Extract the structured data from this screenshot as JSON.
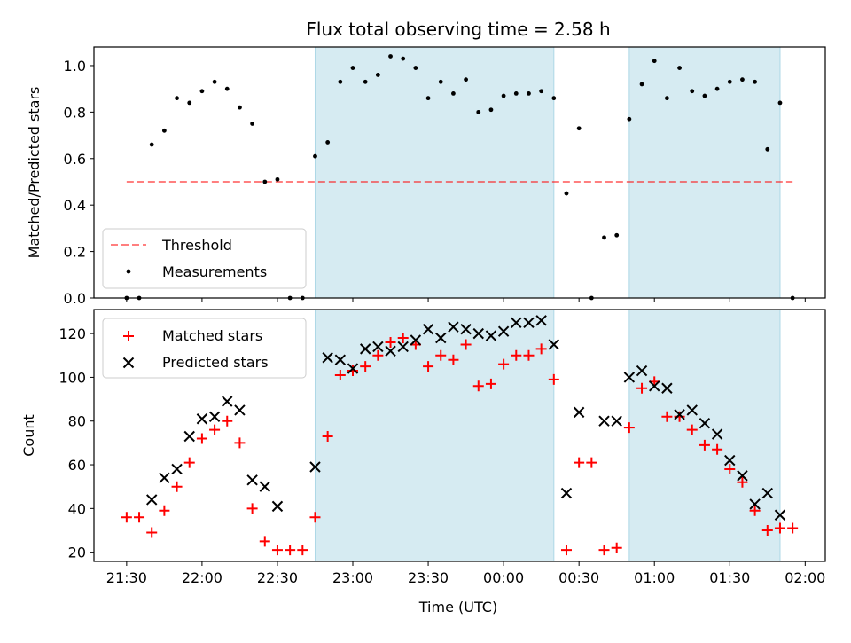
{
  "chart_data": {
    "type": "scatter",
    "title": "Flux total observing time = 2.58 h",
    "xlabel": "Time (UTC)",
    "x_ticks": [
      "21:30",
      "22:00",
      "22:30",
      "23:00",
      "23:30",
      "00:00",
      "00:30",
      "01:00",
      "01:30",
      "02:00"
    ],
    "x_range_minutes_after_2130": [
      -13,
      278
    ],
    "colors": {
      "shade": "#add8e6",
      "threshold": "#ff0000",
      "matched": "#ff0000",
      "predicted": "#000000",
      "measurement": "#000000"
    },
    "observing_windows": [
      {
        "start": "22:45",
        "end": "00:20"
      },
      {
        "start": "00:50",
        "end": "01:50"
      }
    ],
    "panels": [
      {
        "ylabel": "Matched/Predicted stars",
        "ylim": [
          0,
          1.08
        ],
        "y_ticks": [
          "0.0",
          "0.2",
          "0.4",
          "0.6",
          "0.8",
          "1.0"
        ],
        "legend": {
          "placement": "lower-left",
          "entries": [
            "Threshold",
            "Measurements"
          ]
        },
        "threshold": {
          "name": "Threshold",
          "y": 0.5,
          "x_start": "21:30",
          "x_end": "01:55"
        },
        "series": [
          {
            "name": "Measurements",
            "x": [
              "21:30",
              "21:35",
              "21:40",
              "21:45",
              "21:50",
              "21:55",
              "22:00",
              "22:05",
              "22:10",
              "22:15",
              "22:20",
              "22:25",
              "22:30",
              "22:35",
              "22:40",
              "22:45",
              "22:50",
              "22:55",
              "23:00",
              "23:05",
              "23:10",
              "23:15",
              "23:20",
              "23:25",
              "23:30",
              "23:35",
              "23:40",
              "23:45",
              "23:50",
              "23:55",
              "00:00",
              "00:05",
              "00:10",
              "00:15",
              "00:20",
              "00:25",
              "00:30",
              "00:35",
              "00:40",
              "00:45",
              "00:50",
              "00:55",
              "01:00",
              "01:05",
              "01:10",
              "01:15",
              "01:20",
              "01:25",
              "01:30",
              "01:35",
              "01:40",
              "01:45",
              "01:50",
              "01:55"
            ],
            "y": [
              0.0,
              0.0,
              0.66,
              0.72,
              0.86,
              0.84,
              0.89,
              0.93,
              0.9,
              0.82,
              0.75,
              0.5,
              0.51,
              0.0,
              0.0,
              0.61,
              0.67,
              0.93,
              0.99,
              0.93,
              0.96,
              1.04,
              1.03,
              0.99,
              0.86,
              0.93,
              0.88,
              0.94,
              0.8,
              0.81,
              0.87,
              0.88,
              0.88,
              0.89,
              0.86,
              0.45,
              0.73,
              0.0,
              0.26,
              0.27,
              0.77,
              0.92,
              1.02,
              0.86,
              0.99,
              0.89,
              0.87,
              0.9,
              0.93,
              0.94,
              0.93,
              0.64,
              0.84,
              0.0
            ]
          }
        ]
      },
      {
        "ylabel": "Count",
        "ylim": [
          15.8,
          131
        ],
        "y_ticks": [
          "20",
          "40",
          "60",
          "80",
          "100",
          "120"
        ],
        "legend": {
          "placement": "upper-left",
          "entries": [
            "Matched stars",
            "Predicted stars"
          ]
        },
        "series": [
          {
            "name": "Matched stars",
            "x": [
              "21:30",
              "21:35",
              "21:40",
              "21:45",
              "21:50",
              "21:55",
              "22:00",
              "22:05",
              "22:10",
              "22:15",
              "22:20",
              "22:25",
              "22:30",
              "22:35",
              "22:40",
              "22:45",
              "22:50",
              "22:55",
              "23:00",
              "23:05",
              "23:10",
              "23:15",
              "23:20",
              "23:25",
              "23:30",
              "23:35",
              "23:40",
              "23:45",
              "23:50",
              "23:55",
              "00:00",
              "00:05",
              "00:10",
              "00:15",
              "00:20",
              "00:25",
              "00:30",
              "00:35",
              "00:40",
              "00:45",
              "00:50",
              "00:55",
              "01:00",
              "01:05",
              "01:10",
              "01:15",
              "01:20",
              "01:25",
              "01:30",
              "01:35",
              "01:40",
              "01:45",
              "01:50",
              "01:55"
            ],
            "y": [
              36,
              36,
              29,
              39,
              50,
              61,
              72,
              76,
              80,
              70,
              40,
              25,
              21,
              21,
              21,
              36,
              73,
              101,
              103,
              105,
              110,
              116,
              118,
              115,
              105,
              110,
              108,
              115,
              96,
              97,
              106,
              110,
              110,
              113,
              99,
              21,
              61,
              61,
              21,
              22,
              77,
              95,
              98,
              82,
              82,
              76,
              69,
              67,
              58,
              52,
              39,
              30,
              31,
              31
            ]
          },
          {
            "name": "Predicted stars",
            "x": [
              "21:40",
              "21:45",
              "21:50",
              "21:55",
              "22:00",
              "22:05",
              "22:10",
              "22:15",
              "22:20",
              "22:25",
              "22:30",
              "22:45",
              "22:50",
              "22:55",
              "23:00",
              "23:05",
              "23:10",
              "23:15",
              "23:20",
              "23:25",
              "23:30",
              "23:35",
              "23:40",
              "23:45",
              "23:50",
              "23:55",
              "00:00",
              "00:05",
              "00:10",
              "00:15",
              "00:20",
              "00:25",
              "00:30",
              "00:40",
              "00:45",
              "00:50",
              "00:55",
              "01:00",
              "01:05",
              "01:10",
              "01:15",
              "01:20",
              "01:25",
              "01:30",
              "01:35",
              "01:40",
              "01:45",
              "01:50"
            ],
            "y": [
              44,
              54,
              58,
              73,
              81,
              82,
              89,
              85,
              53,
              50,
              41,
              59,
              109,
              108,
              104,
              113,
              114,
              112,
              114,
              117,
              122,
              118,
              123,
              122,
              120,
              119,
              121,
              125,
              125,
              126,
              115,
              47,
              84,
              80,
              80,
              100,
              103,
              96,
              95,
              83,
              85,
              79,
              74,
              62,
              55,
              42,
              47,
              37
            ]
          }
        ]
      }
    ]
  }
}
